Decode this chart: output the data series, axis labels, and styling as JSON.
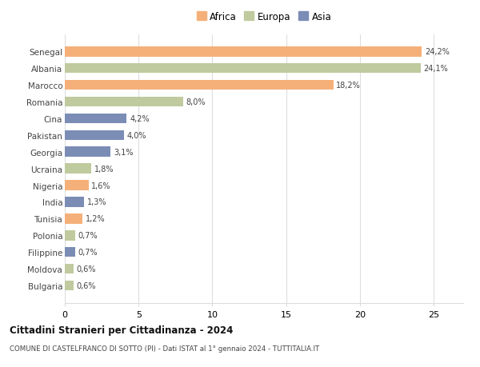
{
  "countries": [
    "Bulgaria",
    "Moldova",
    "Filippine",
    "Polonia",
    "Tunisia",
    "India",
    "Nigeria",
    "Ucraina",
    "Georgia",
    "Pakistan",
    "Cina",
    "Romania",
    "Marocco",
    "Albania",
    "Senegal"
  ],
  "values": [
    0.6,
    0.6,
    0.7,
    0.7,
    1.2,
    1.3,
    1.6,
    1.8,
    3.1,
    4.0,
    4.2,
    8.0,
    18.2,
    24.1,
    24.2
  ],
  "continents": [
    "Europa",
    "Europa",
    "Asia",
    "Europa",
    "Africa",
    "Asia",
    "Africa",
    "Europa",
    "Asia",
    "Asia",
    "Asia",
    "Europa",
    "Africa",
    "Europa",
    "Africa"
  ],
  "colors": {
    "Africa": "#F5B07A",
    "Europa": "#BFCA9E",
    "Asia": "#7B8DB5"
  },
  "title": "Cittadini Stranieri per Cittadinanza - 2024",
  "subtitle": "COMUNE DI CASTELFRANCO DI SOTTO (PI) - Dati ISTAT al 1° gennaio 2024 - TUTTITALIA.IT",
  "xlabel_ticks": [
    0,
    5,
    10,
    15,
    20,
    25
  ],
  "xlim": [
    0,
    27
  ],
  "background_color": "#ffffff",
  "grid_color": "#dddddd"
}
